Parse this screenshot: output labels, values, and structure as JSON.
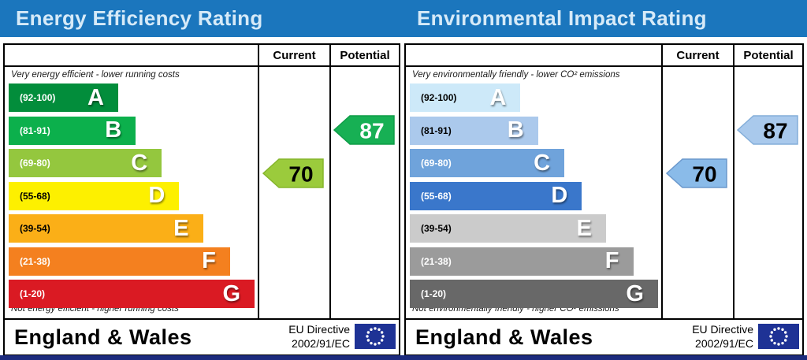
{
  "page": {
    "top_bar_color": "#1b76bd",
    "title_text_color": "#d6eaf8",
    "bottom_bar_color": "#1c2b7d"
  },
  "columns": {
    "current": "Current",
    "potential": "Potential"
  },
  "footer": {
    "region": "England & Wales",
    "directive_line1": "EU Directive",
    "directive_line2": "2002/91/EC",
    "eu_flag_color": "#1e3295",
    "eu_flag_star_color": "#ffffff"
  },
  "chart_data": [
    {
      "type": "bar",
      "title": "Energy Efficiency Rating",
      "top_caption": "Very energy efficient - lower running costs",
      "bottom_caption": "Not energy efficient - higher running costs",
      "categories": [
        "A",
        "B",
        "C",
        "D",
        "E",
        "F",
        "G"
      ],
      "ranges": [
        "(92-100)",
        "(81-91)",
        "(69-80)",
        "(55-68)",
        "(39-54)",
        "(21-38)",
        "(1-20)"
      ],
      "band_colors": [
        "#028d3b",
        "#0cb04c",
        "#94c73e",
        "#fdf000",
        "#fbaf17",
        "#f4801f",
        "#da1a23"
      ],
      "range_label_colors": [
        "#ffffff",
        "#ffffff",
        "#ffffff",
        "#000000",
        "#000000",
        "#ffffff",
        "#ffffff"
      ],
      "letter_color": "#ffffff",
      "band_width_pct": [
        43.3,
        50.2,
        60.5,
        67.4,
        76.8,
        87.5,
        97.2
      ],
      "current": {
        "value": 70,
        "band": "C",
        "fill": "#9bcb3c",
        "border": "#85b52c",
        "text_color": "#000000"
      },
      "potential": {
        "value": 87,
        "band": "B",
        "fill": "#17b054",
        "border": "#0e9c47",
        "text_color": "#ffffff"
      }
    },
    {
      "type": "bar",
      "title": "Environmental Impact Rating",
      "top_caption": "Very environmentally friendly - lower CO² emissions",
      "bottom_caption": "Not environmentally friendly - higher CO² emissions",
      "categories": [
        "A",
        "B",
        "C",
        "D",
        "E",
        "F",
        "G"
      ],
      "ranges": [
        "(92-100)",
        "(81-91)",
        "(69-80)",
        "(55-68)",
        "(39-54)",
        "(21-38)",
        "(1-20)"
      ],
      "band_colors": [
        "#cde9f9",
        "#abc9ec",
        "#6fa3db",
        "#3a77cb",
        "#cbcbcb",
        "#9b9b9b",
        "#686868"
      ],
      "range_label_colors": [
        "#000000",
        "#000000",
        "#ffffff",
        "#ffffff",
        "#000000",
        "#ffffff",
        "#ffffff"
      ],
      "letter_color": "#ffffff",
      "band_width_pct": [
        43.3,
        50.2,
        60.5,
        67.4,
        76.8,
        87.5,
        97.2
      ],
      "current": {
        "value": 70,
        "band": "C",
        "fill": "#8abbe9",
        "border": "#6b98cc",
        "text_color": "#000000"
      },
      "potential": {
        "value": 87,
        "band": "B",
        "fill": "#a9c9ec",
        "border": "#84aed9",
        "text_color": "#000000"
      }
    }
  ]
}
